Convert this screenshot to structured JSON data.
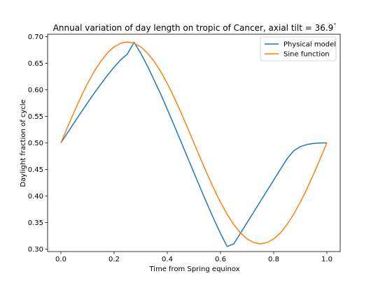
{
  "chart_data": {
    "type": "line",
    "title_main": "Annual variation of day length on tropic of Cancer, axial tilt ",
    "title_eq": "= 36.9",
    "title_degree": "°",
    "xlabel": "Time from Spring equinox",
    "ylabel": "Daylight fraction of cycle",
    "xlim": [
      -0.05,
      1.05
    ],
    "ylim": [
      0.2955,
      0.7045
    ],
    "x_ticks": [
      {
        "value": 0.0,
        "label": "0.0"
      },
      {
        "value": 0.2,
        "label": "0.2"
      },
      {
        "value": 0.4,
        "label": "0.4"
      },
      {
        "value": 0.6,
        "label": "0.6"
      },
      {
        "value": 0.8,
        "label": "0.8"
      },
      {
        "value": 1.0,
        "label": "1.0"
      }
    ],
    "y_ticks": [
      {
        "value": 0.3,
        "label": "0.30"
      },
      {
        "value": 0.35,
        "label": "0.35"
      },
      {
        "value": 0.4,
        "label": "0.40"
      },
      {
        "value": 0.45,
        "label": "0.45"
      },
      {
        "value": 0.5,
        "label": "0.50"
      },
      {
        "value": 0.55,
        "label": "0.55"
      },
      {
        "value": 0.6,
        "label": "0.60"
      },
      {
        "value": 0.65,
        "label": "0.65"
      },
      {
        "value": 0.7,
        "label": "0.70"
      }
    ],
    "grid": false,
    "legend_position": "top-right",
    "series": [
      {
        "name": "Physical model",
        "color": "#1f77b4",
        "x": [
          0,
          0.025,
          0.05,
          0.075,
          0.1,
          0.125,
          0.15,
          0.175,
          0.2,
          0.225,
          0.25,
          0.275,
          0.3,
          0.325,
          0.35,
          0.375,
          0.4,
          0.425,
          0.45,
          0.475,
          0.5,
          0.525,
          0.55,
          0.575,
          0.6,
          0.625,
          0.65,
          0.675,
          0.7,
          0.725,
          0.75,
          0.775,
          0.8,
          0.825,
          0.85,
          0.875,
          0.9,
          0.925,
          0.95,
          0.975,
          1.0
        ],
        "y": [
          0.5,
          0.5191,
          0.5381,
          0.5569,
          0.5754,
          0.5933,
          0.6106,
          0.6271,
          0.6426,
          0.6565,
          0.6673,
          0.6894,
          0.6688,
          0.6449,
          0.6186,
          0.5921,
          0.5632,
          0.5338,
          0.504,
          0.474,
          0.444,
          0.4142,
          0.3849,
          0.3565,
          0.3296,
          0.305,
          0.31,
          0.33,
          0.35,
          0.37,
          0.39,
          0.41,
          0.43,
          0.45,
          0.47,
          0.485,
          0.493,
          0.497,
          0.499,
          0.4998,
          0.5
        ]
      },
      {
        "name": "Sine function",
        "color": "#ff7f0e",
        "x": [
          0,
          0.025,
          0.05,
          0.075,
          0.1,
          0.125,
          0.15,
          0.175,
          0.2,
          0.225,
          0.25,
          0.275,
          0.3,
          0.325,
          0.35,
          0.375,
          0.4,
          0.425,
          0.45,
          0.475,
          0.5,
          0.525,
          0.55,
          0.575,
          0.6,
          0.625,
          0.65,
          0.675,
          0.7,
          0.725,
          0.75,
          0.775,
          0.8,
          0.825,
          0.85,
          0.875,
          0.9,
          0.925,
          0.95,
          0.975,
          1.0
        ],
        "y": [
          0.5,
          0.5296,
          0.5587,
          0.5863,
          0.6117,
          0.6344,
          0.6537,
          0.6694,
          0.6807,
          0.6876,
          0.69,
          0.6876,
          0.6807,
          0.6694,
          0.6537,
          0.6344,
          0.6117,
          0.5863,
          0.5587,
          0.5296,
          0.5,
          0.4704,
          0.4413,
          0.4137,
          0.3883,
          0.3656,
          0.3463,
          0.3306,
          0.3193,
          0.3124,
          0.31,
          0.3124,
          0.3193,
          0.3306,
          0.3463,
          0.3656,
          0.3883,
          0.4137,
          0.4413,
          0.4704,
          0.5
        ]
      }
    ]
  }
}
